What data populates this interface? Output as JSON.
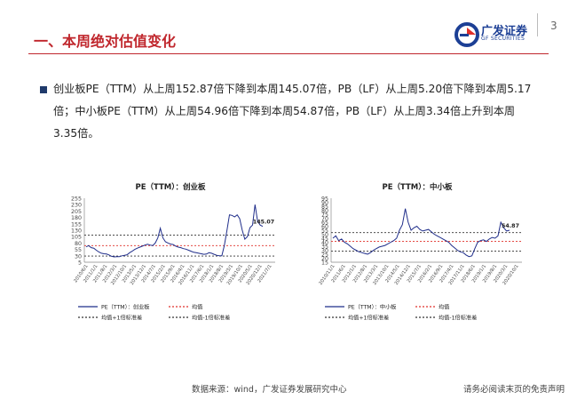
{
  "header": {
    "title": "一、本周绝对估值变化",
    "logo_text": "广发证券",
    "logo_sub": "GF SECURITIES",
    "page_number": "3"
  },
  "body": {
    "text": "创业板PE（TTM）从上周152.87倍下降到本周145.07倍，PB（LF）从上周5.20倍下降到本周5.17倍；中小板PE（TTM）从上周54.96倍下降到本周54.87倍，PB（LF）从上周3.34倍上升到本周3.35倍。"
  },
  "footer": {
    "source": "数据来源：wind，广发证券发展研究中心",
    "disclaimer": "请务必阅读末页的免责声明"
  },
  "colors": {
    "accent": "#c0272d",
    "series": "#1f2d8a",
    "mean": "#e0302a",
    "band": "#333333",
    "brand": "#1c3f95"
  },
  "chart_data": [
    {
      "type": "line",
      "title": "PE（TTM）：创业板",
      "ylim": [
        5,
        255
      ],
      "yticks": [
        5,
        30,
        55,
        80,
        105,
        130,
        155,
        180,
        205,
        230,
        255
      ],
      "xticks": [
        "2010/6/1",
        "2011/1/1",
        "2011/8/1",
        "2012/3/1",
        "2012/10/1",
        "2013/5/1",
        "2013/12/1",
        "2014/7/1",
        "2015/2/1",
        "2015/9/1",
        "2016/4/1",
        "2016/11/1",
        "2017/6/1",
        "2018/1/1",
        "2018/8/1",
        "2019/3/1",
        "2019/10/1",
        "2020/5/1",
        "2020/12/1",
        "2021/7/1"
      ],
      "mean": 70,
      "upper": 111,
      "lower": 29,
      "last_label": "145.07",
      "series": [
        {
          "name": "PE（TTM）：创业板",
          "values": [
            65,
            70,
            62,
            60,
            52,
            45,
            40,
            38,
            37,
            33,
            28,
            26,
            27,
            27,
            30,
            32,
            34,
            42,
            48,
            55,
            60,
            64,
            68,
            72,
            75,
            72,
            70,
            80,
            100,
            138,
            100,
            85,
            80,
            76,
            74,
            68,
            64,
            62,
            58,
            56,
            52,
            48,
            44,
            42,
            40,
            38,
            36,
            37,
            42,
            40,
            36,
            32,
            30,
            30,
            70,
            128,
            190,
            188,
            182,
            190,
            175,
            130,
            95,
            105,
            140,
            150,
            230,
            165,
            150,
            145
          ]
        }
      ],
      "legend": [
        "PE（TTM）：创业板",
        "均值",
        "均值+1倍标准差",
        "均值-1倍标准差"
      ]
    },
    {
      "type": "line",
      "title": "PE（TTM）：中小板",
      "ylim": [
        15,
        95
      ],
      "yticks": [
        15,
        20,
        25,
        30,
        35,
        40,
        45,
        50,
        55,
        60,
        65,
        70,
        75,
        80,
        85,
        90,
        95
      ],
      "xticks": [
        "2010/11/1",
        "2011/6/1",
        "2012/1/1",
        "2012/8/1",
        "2013/3/1",
        "2013/10/1",
        "2014/5/1",
        "2014/12/1",
        "2015/7/1",
        "2016/2/1",
        "2016/9/1",
        "2017/4/1",
        "2017/11/1",
        "2018/6/1",
        "2019/1/1",
        "2019/8/1",
        "2020/3/1",
        "2020/10/1"
      ],
      "mean": 41,
      "upper": 52,
      "lower": 29,
      "last_label": "54.87",
      "series": [
        {
          "name": "PE（TTM）：中小板",
          "values": [
            45,
            48,
            42,
            44,
            40,
            38,
            35,
            32,
            30,
            28,
            27,
            26,
            25,
            27,
            30,
            32,
            34,
            35,
            36,
            38,
            40,
            42,
            45,
            55,
            62,
            82,
            65,
            55,
            58,
            60,
            56,
            54,
            55,
            56,
            53,
            50,
            48,
            46,
            44,
            42,
            40,
            36,
            33,
            30,
            28,
            27,
            24,
            22,
            23,
            32,
            40,
            42,
            43,
            41,
            44,
            46,
            45,
            48,
            65,
            58,
            54,
            55
          ]
        }
      ],
      "legend": [
        "PE（TTM）：中小板",
        "均值",
        "均值+1倍标准差",
        "均值-1倍标准差"
      ]
    }
  ]
}
